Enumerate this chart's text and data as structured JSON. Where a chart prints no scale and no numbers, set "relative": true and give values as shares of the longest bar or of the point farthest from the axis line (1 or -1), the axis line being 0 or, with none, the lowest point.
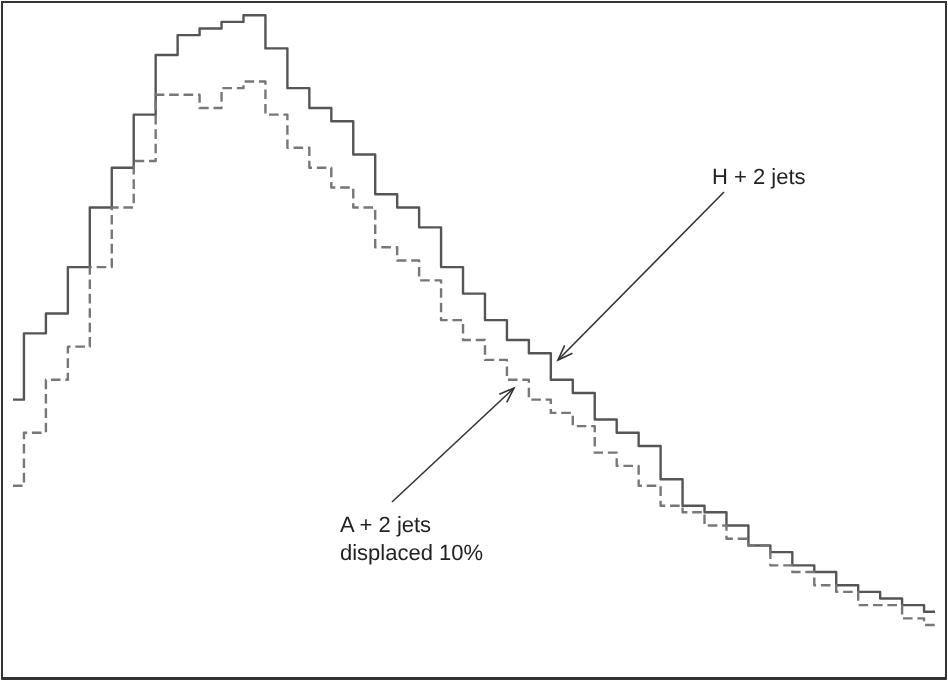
{
  "chart_data": {
    "type": "step",
    "relative": true,
    "categories": [
      null,
      null,
      null,
      null,
      null,
      null,
      null,
      null,
      null,
      null,
      null,
      null,
      null,
      null,
      null,
      null,
      null,
      null,
      null,
      null,
      null,
      null,
      null,
      null,
      null,
      null,
      null,
      null,
      null,
      null,
      null,
      null,
      null,
      null,
      null,
      null,
      null,
      null,
      null,
      null,
      null,
      null,
      null
    ],
    "series": [
      {
        "color": "#555555",
        "line_style": "solid",
        "values": [
          0.42,
          0.52,
          0.55,
          0.62,
          0.71,
          0.77,
          0.85,
          0.94,
          0.97,
          0.98,
          0.99,
          1,
          0.95,
          0.89,
          0.86,
          0.84,
          0.79,
          0.73,
          0.71,
          0.68,
          0.62,
          0.58,
          0.54,
          0.51,
          0.49,
          0.45,
          0.43,
          0.39,
          0.37,
          0.35,
          0.3,
          0.26,
          0.25,
          0.23,
          0.2,
          0.19,
          0.17,
          0.16,
          0.14,
          0.13,
          0.12,
          0.11,
          0.1
        ]
      },
      {
        "color": "#777777",
        "line_style": "dashed",
        "values": [
          0.29,
          0.37,
          0.45,
          0.5,
          0.62,
          0.71,
          0.78,
          0.88,
          0.88,
          0.86,
          0.89,
          0.9,
          0.85,
          0.8,
          0.77,
          0.74,
          0.71,
          0.65,
          0.63,
          0.6,
          0.54,
          0.51,
          0.48,
          0.45,
          0.42,
          0.4,
          0.38,
          0.34,
          0.32,
          0.29,
          0.26,
          0.25,
          0.23,
          0.21,
          0.2,
          0.17,
          0.16,
          0.14,
          0.13,
          0.11,
          0.11,
          0.09,
          0.08
        ]
      }
    ],
    "annotations": [
      "H + 2 jets",
      "A + 2 jets\ndisplaced 10%"
    ]
  }
}
